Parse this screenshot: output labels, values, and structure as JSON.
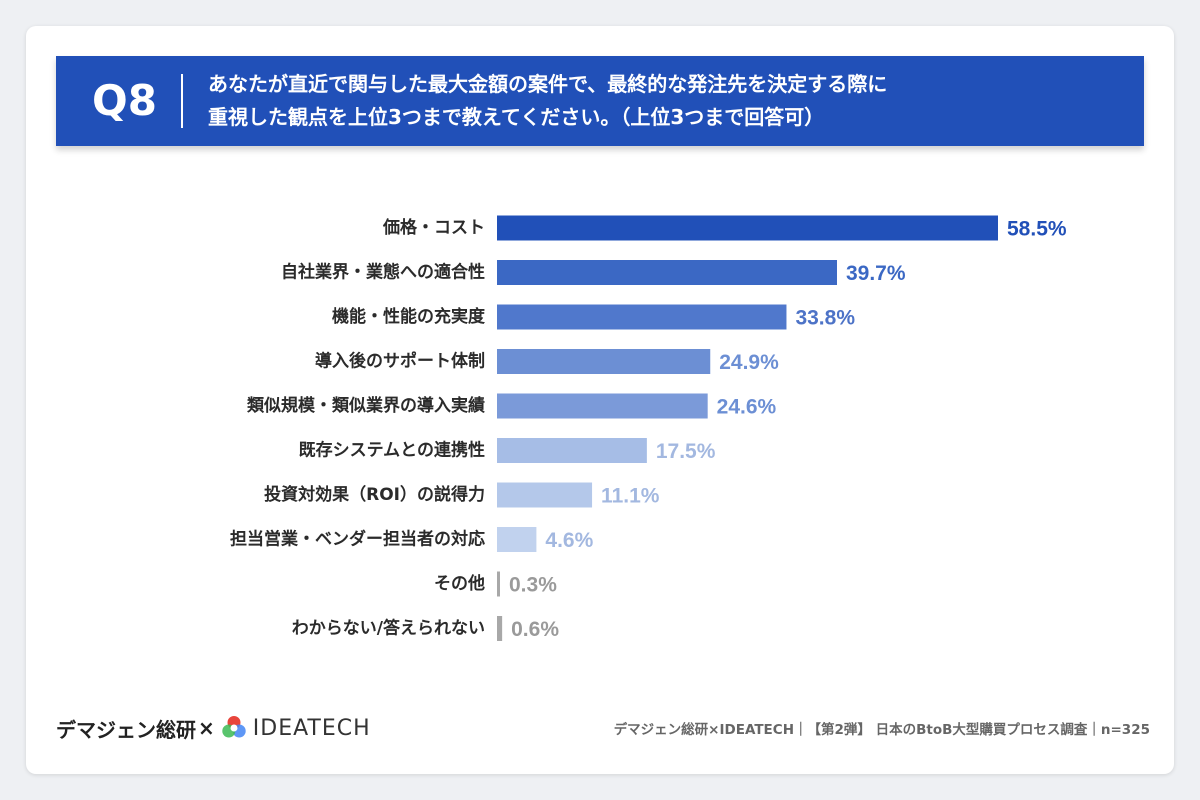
{
  "question": {
    "number": "Q8",
    "line1": "あなたが直近で関与した最大金額の案件で、最終的な発注先を決定する際に",
    "line2": "重視した観点を上位3つまで教えてください。（上位3つまで回答可）"
  },
  "chart_data": {
    "type": "bar",
    "orientation": "horizontal",
    "categories": [
      "価格・コスト",
      "自社業界・業態への適合性",
      "機能・性能の充実度",
      "導入後のサポート体制",
      "類似規模・類似業界の導入実績",
      "既存システムとの連携性",
      "投資対効果（ROI）の説得力",
      "担当営業・ベンダー担当者の対応",
      "その他",
      "わからない/答えられない"
    ],
    "values": [
      58.5,
      39.7,
      33.8,
      24.9,
      24.6,
      17.5,
      11.1,
      4.6,
      0.3,
      0.6
    ],
    "value_labels": [
      "58.5%",
      "39.7%",
      "33.8%",
      "24.9%",
      "24.6%",
      "17.5%",
      "11.1%",
      "4.6%",
      "0.3%",
      "0.6%"
    ],
    "bar_colors": [
      "#2150b8",
      "#3b68c4",
      "#5078cc",
      "#6c8fd4",
      "#7b9ad9",
      "#a6bde6",
      "#b4c8ea",
      "#c1d2ee",
      "#a8a8a8",
      "#a8a8a8"
    ],
    "label_colors": [
      "#2150b8",
      "#3b68c4",
      "#4d73c7",
      "#6c8fd4",
      "#6c8fd4",
      "#a3b8e0",
      "#a3b8e0",
      "#a3b8e0",
      "#9a9a9a",
      "#9a9a9a"
    ],
    "xlim": [
      0,
      60
    ],
    "grid": false,
    "legend": "none"
  },
  "footer": {
    "brand_left": "デマジェン総研",
    "times": "×",
    "brand_right": "IDEATECH",
    "source": "デマジェン総研×IDEATECH｜【第2弾】 日本のBtoB大型購買プロセス調査｜n=325"
  },
  "colors": {
    "banner": "#2150b8",
    "logo": [
      "#e8453c",
      "#f6a623",
      "#3cba54",
      "#4285f4",
      "#a64ac9"
    ]
  }
}
